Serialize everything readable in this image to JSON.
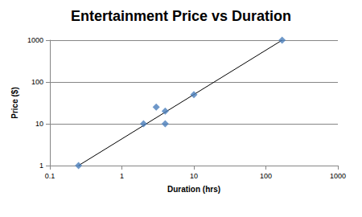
{
  "chart_data": {
    "type": "scatter",
    "title": "Entertainment Price vs Duration",
    "x_label": "Duration (hrs)",
    "y_label": "Price ($)",
    "log": true,
    "grid": "y",
    "xlim": [
      0.1,
      1000
    ],
    "xticks": [
      0.1,
      1,
      10,
      100,
      1000
    ],
    "ylim": [
      1,
      1000
    ],
    "yticks": [
      1,
      10,
      100,
      1000
    ],
    "series": [
      {
        "type": "scatter",
        "color": "#4a7ebb",
        "marker": "diamond",
        "x": [
          0.25,
          2,
          3,
          4,
          4,
          10,
          168
        ],
        "values": [
          1,
          10,
          25,
          20,
          10,
          50,
          1000
        ]
      },
      {
        "type": "line",
        "color": "#000000",
        "line_style": "solid",
        "x": [
          0.25,
          168
        ],
        "values": [
          1,
          1000
        ]
      }
    ]
  }
}
